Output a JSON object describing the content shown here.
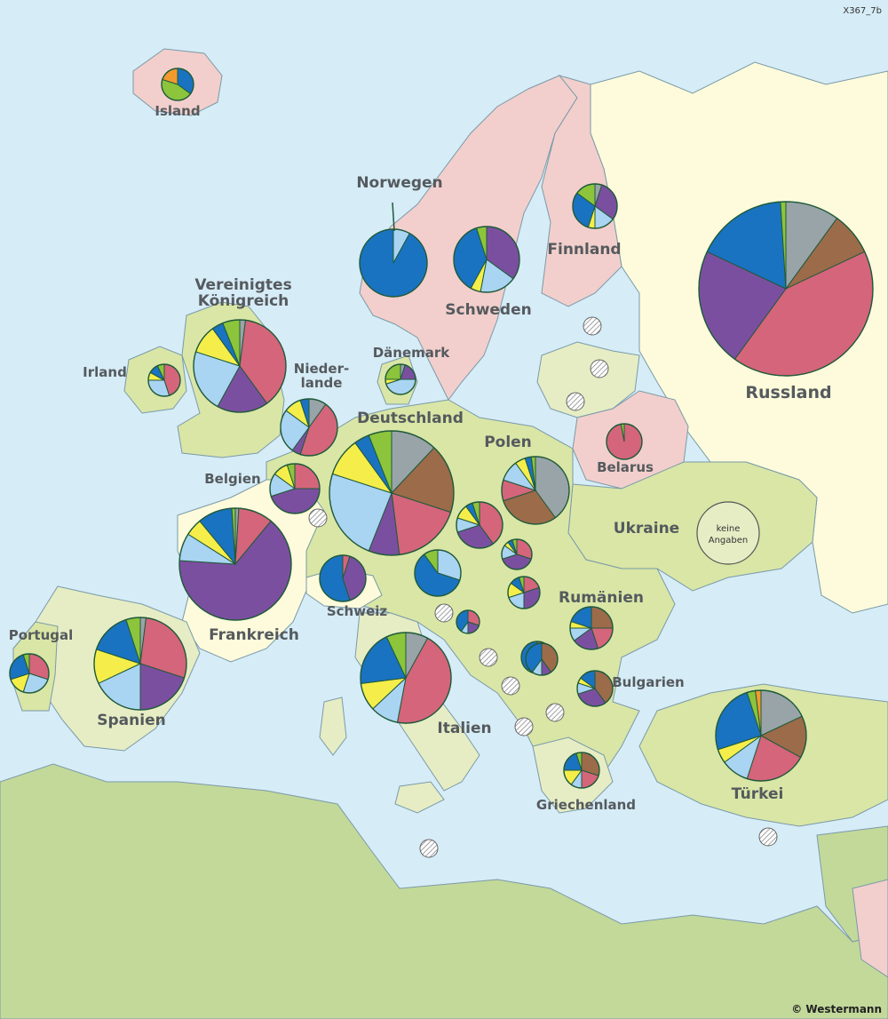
{
  "code_label": "X367_7b",
  "copyright": "© Westermann",
  "no_data_label": "keine Angaben",
  "colors": {
    "sea": "#d6ecf7",
    "eu_green": "#d9e6a6",
    "light_green": "#e6edc4",
    "cream": "#fdfbdb",
    "pink": "#f2cfcc",
    "slice_gray": "#98a4a8",
    "slice_brown": "#9c6b4a",
    "slice_pink": "#d4657a",
    "slice_purple": "#7b4fa0",
    "slice_lightblue": "#a9d4f2",
    "slice_yellow": "#f5ee4a",
    "slice_blue": "#1a73c0",
    "slice_green": "#8cc43c",
    "slice_orange": "#f29a2e"
  },
  "countries": [
    {
      "name": "Island",
      "label": "Island",
      "shares": [
        0,
        0,
        0,
        0,
        0,
        0,
        35,
        45,
        20
      ]
    },
    {
      "name": "Norwegen",
      "label": "Norwegen",
      "shares": [
        0,
        0,
        0,
        0,
        8,
        0,
        92,
        0,
        0
      ]
    },
    {
      "name": "Schweden",
      "label": "Schweden",
      "shares": [
        0,
        0,
        0,
        35,
        18,
        5,
        37,
        5,
        0
      ]
    },
    {
      "name": "Finnland",
      "label": "Finnland",
      "shares": [
        5,
        0,
        0,
        30,
        15,
        5,
        30,
        15,
        0
      ]
    },
    {
      "name": "Russland",
      "label": "Russland",
      "shares": [
        10,
        8,
        42,
        22,
        0,
        0,
        17,
        1,
        0
      ]
    },
    {
      "name": "Vereinigtes Königreich",
      "label": "Vereinigtes\nKönigreich",
      "shares": [
        2,
        0,
        38,
        18,
        22,
        10,
        4,
        6,
        0
      ]
    },
    {
      "name": "Irland",
      "label": "Irland",
      "shares": [
        0,
        0,
        45,
        0,
        30,
        8,
        10,
        7,
        0
      ]
    },
    {
      "name": "Dänemark",
      "label": "Dänemark",
      "shares": [
        5,
        0,
        0,
        20,
        45,
        5,
        0,
        25,
        0
      ]
    },
    {
      "name": "Niederlande",
      "label": "Nieder-\nlande",
      "shares": [
        10,
        0,
        45,
        5,
        25,
        10,
        5,
        0,
        0
      ]
    },
    {
      "name": "Deutschland",
      "label": "Deutschland",
      "shares": [
        12,
        18,
        18,
        8,
        24,
        10,
        4,
        6,
        0
      ]
    },
    {
      "name": "Polen",
      "label": "Polen",
      "shares": [
        40,
        30,
        10,
        0,
        10,
        5,
        3,
        2,
        0
      ]
    },
    {
      "name": "Belarus",
      "label": "Belarus",
      "shares": [
        0,
        0,
        97,
        0,
        0,
        0,
        0,
        3,
        0
      ]
    },
    {
      "name": "Belgien",
      "label": "Belgien",
      "shares": [
        0,
        0,
        25,
        45,
        15,
        10,
        0,
        5,
        0
      ]
    },
    {
      "name": "Frankreich",
      "label": "Frankreich",
      "shares": [
        1,
        0,
        10,
        65,
        8,
        5,
        10,
        1,
        0
      ]
    },
    {
      "name": "Schweiz",
      "label": "Schweiz",
      "shares": [
        0,
        0,
        5,
        40,
        0,
        0,
        55,
        0,
        0
      ]
    },
    {
      "name": "Ukraine",
      "label": "Ukraine",
      "shares": []
    },
    {
      "name": "Rumänien",
      "label": "Rumänien",
      "shares": [
        0,
        25,
        20,
        20,
        10,
        5,
        20,
        0,
        0
      ]
    },
    {
      "name": "Bulgarien",
      "label": "Bulgarien",
      "shares": [
        0,
        40,
        0,
        30,
        10,
        5,
        15,
        0,
        0
      ]
    },
    {
      "name": "Portugal",
      "label": "Portugal",
      "shares": [
        0,
        0,
        30,
        0,
        25,
        15,
        25,
        5,
        0
      ]
    },
    {
      "name": "Spanien",
      "label": "Spanien",
      "shares": [
        2,
        0,
        28,
        20,
        18,
        12,
        15,
        5,
        0
      ]
    },
    {
      "name": "Italien",
      "label": "Italien",
      "shares": [
        8,
        0,
        45,
        0,
        10,
        10,
        20,
        7,
        0
      ]
    },
    {
      "name": "Griechenland",
      "label": "Griechenland",
      "shares": [
        0,
        30,
        20,
        0,
        10,
        15,
        20,
        5,
        0
      ]
    },
    {
      "name": "Türkei",
      "label": "Türkei",
      "shares": [
        18,
        15,
        22,
        0,
        10,
        5,
        25,
        3,
        2
      ]
    }
  ],
  "minor_pies": [
    {
      "shares": [
        0,
        0,
        40,
        30,
        10,
        10,
        5,
        5,
        0
      ]
    },
    {
      "shares": [
        0,
        0,
        30,
        40,
        15,
        5,
        5,
        5,
        0
      ]
    },
    {
      "shares": [
        0,
        0,
        20,
        30,
        20,
        15,
        10,
        5,
        0
      ]
    },
    {
      "shares": [
        0,
        0,
        0,
        0,
        30,
        0,
        60,
        10,
        0
      ]
    },
    {
      "shares": [
        0,
        0,
        30,
        20,
        10,
        0,
        40,
        0,
        0
      ]
    },
    {
      "shares": [
        0,
        0,
        25,
        25,
        10,
        0,
        40,
        0,
        0
      ]
    },
    {
      "shares": [
        0,
        0,
        30,
        30,
        10,
        10,
        20,
        0,
        0
      ]
    },
    {
      "shares": [
        0,
        40,
        0,
        10,
        10,
        0,
        40,
        0,
        0
      ]
    }
  ]
}
